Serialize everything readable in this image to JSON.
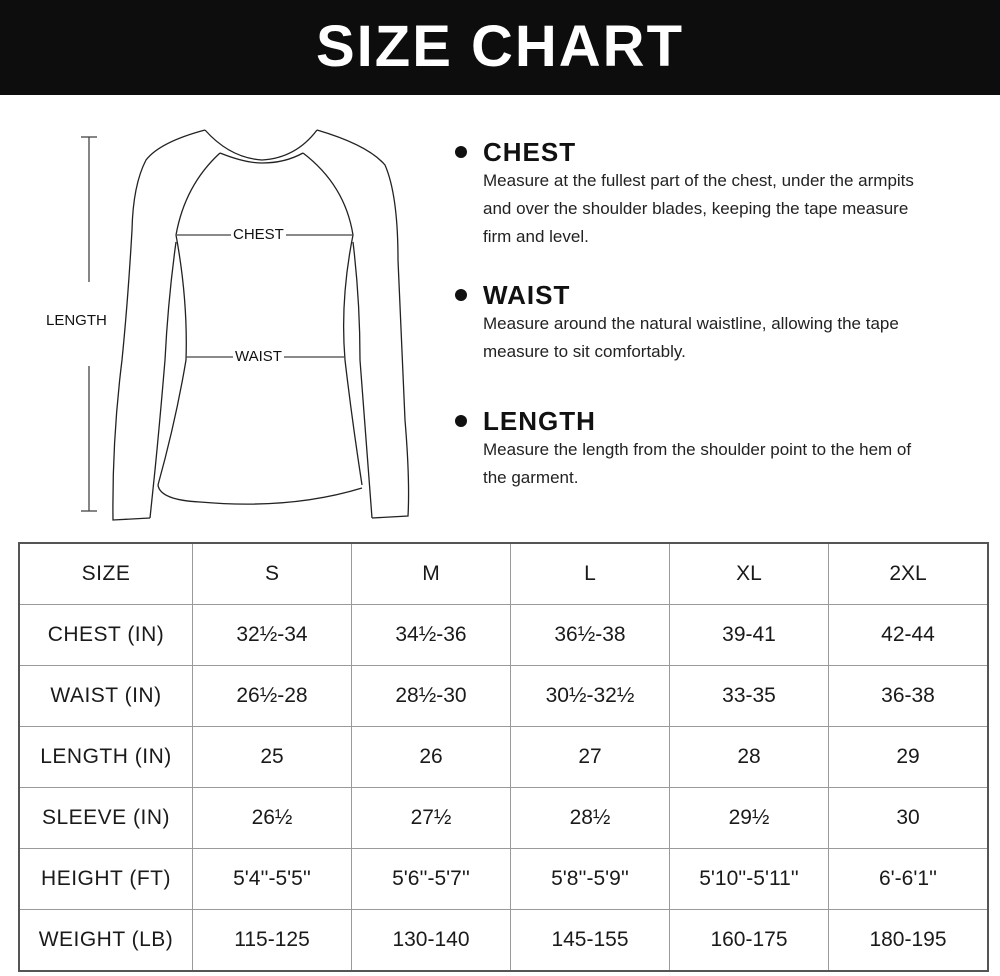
{
  "header": {
    "title": "SIZE CHART"
  },
  "diagram": {
    "labels": {
      "length": "LENGTH",
      "chest": "CHEST",
      "waist": "WAIST"
    }
  },
  "instructions": [
    {
      "title": "CHEST",
      "lines": [
        "Measure at the fullest part of the chest, under the armpits",
        "and over the shoulder blades, keeping the tape measure",
        "firm and level."
      ]
    },
    {
      "title": "WAIST",
      "lines": [
        "Measure around the natural waistline, allowing the tape",
        "measure to sit comfortably."
      ]
    },
    {
      "title": "LENGTH",
      "lines": [
        "Measure the length from the shoulder point to the hem of",
        "the garment."
      ]
    }
  ],
  "table": {
    "rows": [
      {
        "label": "SIZE",
        "values": [
          "S",
          "M",
          "L",
          "XL",
          "2XL"
        ]
      },
      {
        "label": "CHEST (IN)",
        "values": [
          "32½-34",
          "34½-36",
          "36½-38",
          "39-41",
          "42-44"
        ]
      },
      {
        "label": "WAIST (IN)",
        "values": [
          "26½-28",
          "28½-30",
          "30½-32½",
          "33-35",
          "36-38"
        ]
      },
      {
        "label": "LENGTH (IN)",
        "values": [
          "25",
          "26",
          "27",
          "28",
          "29"
        ]
      },
      {
        "label": "SLEEVE (IN)",
        "values": [
          "26½",
          "27½",
          "28½",
          "29½",
          "30"
        ]
      },
      {
        "label": "HEIGHT (FT)",
        "values": [
          "5'4''-5'5''",
          "5'6''-5'7''",
          "5'8''-5'9''",
          "5'10''-5'11''",
          "6'-6'1''"
        ]
      },
      {
        "label": "WEIGHT (LB)",
        "values": [
          "115-125",
          "130-140",
          "145-155",
          "160-175",
          "180-195"
        ]
      }
    ]
  }
}
